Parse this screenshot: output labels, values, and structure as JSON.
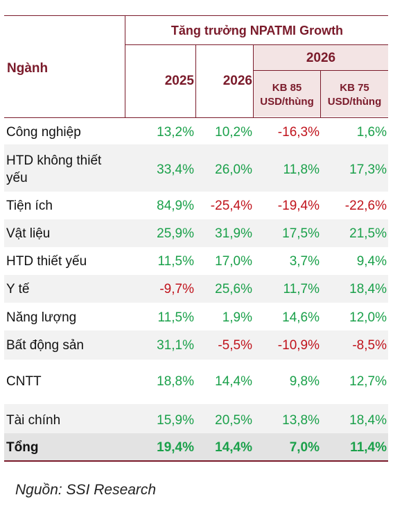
{
  "header": {
    "sector_label": "Ngành",
    "group_title": "Tăng trưởng NPATMI Growth",
    "col_2025": "2025",
    "col_2026": "2026",
    "scenario_year": "2026",
    "scenario_1_line1": "KB 85",
    "scenario_1_line2": "USD/thùng",
    "scenario_2_line1": "KB 75",
    "scenario_2_line2": "USD/thùng"
  },
  "rows": [
    {
      "name": "Công nghiệp",
      "name2": "",
      "v": [
        "13,2%",
        "10,2%",
        "-16,3%",
        "1,6%"
      ]
    },
    {
      "name": "HTD không thiết",
      "name2": "yếu",
      "v": [
        "33,4%",
        "26,0%",
        "11,8%",
        "17,3%"
      ]
    },
    {
      "name": "Tiện ích",
      "name2": "",
      "v": [
        "84,9%",
        "-25,4%",
        "-19,4%",
        "-22,6%"
      ]
    },
    {
      "name": "Vật liệu",
      "name2": "",
      "v": [
        "25,9%",
        "31,9%",
        "17,5%",
        "21,5%"
      ]
    },
    {
      "name": "HTD thiết yếu",
      "name2": "",
      "v": [
        "11,5%",
        "17,0%",
        "3,7%",
        "9,4%"
      ]
    },
    {
      "name": "Y tế",
      "name2": "",
      "v": [
        "-9,7%",
        "25,6%",
        "11,7%",
        "18,4%"
      ]
    },
    {
      "name": "Năng lượng",
      "name2": "",
      "v": [
        "11,5%",
        "1,9%",
        "14,6%",
        "12,0%"
      ]
    },
    {
      "name": "Bất động sản",
      "name2": "",
      "v": [
        "31,1%",
        "-5,5%",
        "-10,9%",
        "-8,5%"
      ]
    },
    {
      "name": "CNTT",
      "name2": "",
      "v": [
        "18,8%",
        "14,4%",
        "9,8%",
        "12,7%"
      ]
    },
    {
      "name": "Tài chính",
      "name2": "",
      "v": [
        "15,9%",
        "20,5%",
        "13,8%",
        "18,4%"
      ]
    },
    {
      "name": "Tổng",
      "name2": "",
      "v": [
        "19,4%",
        "14,4%",
        "7,0%",
        "11,4%"
      ]
    }
  ],
  "colors": {
    "positive": "#1aa04a",
    "negative": "#c0131c",
    "accent": "#7a1a2a",
    "scenario_bg": "#f3e4e4"
  },
  "source": "Nguồn: SSI Research"
}
